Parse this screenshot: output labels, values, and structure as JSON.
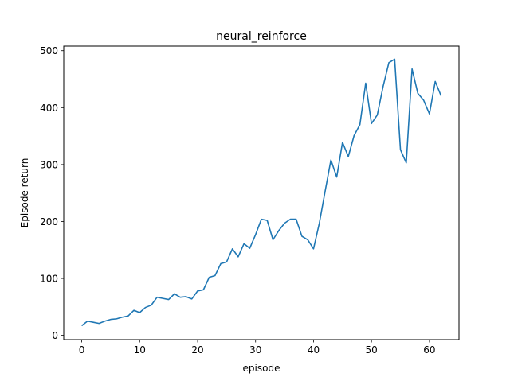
{
  "chart_data": {
    "type": "line",
    "title": "neural_reinforce",
    "xlabel": "episode",
    "ylabel": "Episode return",
    "xlim": [
      -3.1,
      65.1
    ],
    "ylim": [
      -7.5,
      508
    ],
    "xticks": [
      0,
      10,
      20,
      30,
      40,
      50,
      60
    ],
    "yticks": [
      0,
      100,
      200,
      300,
      400,
      500
    ],
    "grid": false,
    "line_color": "#1f77b4",
    "series": [
      {
        "x": [
          0,
          1,
          2,
          3,
          4,
          5,
          6,
          7,
          8,
          9,
          10,
          11,
          12,
          13,
          14,
          15,
          16,
          17,
          18,
          19,
          20,
          21,
          22,
          23,
          24,
          25,
          26,
          27,
          28,
          29,
          30,
          31,
          32,
          33,
          34,
          35,
          36,
          37,
          38,
          39,
          40,
          41,
          42,
          43,
          44,
          45,
          46,
          47,
          48,
          49,
          50,
          51,
          52,
          53,
          54,
          55,
          56,
          57,
          58,
          59,
          60,
          61,
          62
        ],
        "values": [
          17,
          25,
          23,
          21,
          25,
          28,
          29,
          32,
          34,
          44,
          40,
          49,
          53,
          67,
          65,
          63,
          73,
          67,
          68,
          64,
          78,
          80,
          102,
          105,
          126,
          129,
          152,
          138,
          161,
          153,
          177,
          204,
          202,
          168,
          184,
          197,
          204,
          204,
          174,
          168,
          152,
          197,
          253,
          308,
          278,
          339,
          314,
          351,
          370,
          443,
          372,
          387,
          437,
          479,
          485,
          326,
          303,
          468,
          425,
          413,
          389,
          446,
          421
        ]
      }
    ]
  }
}
